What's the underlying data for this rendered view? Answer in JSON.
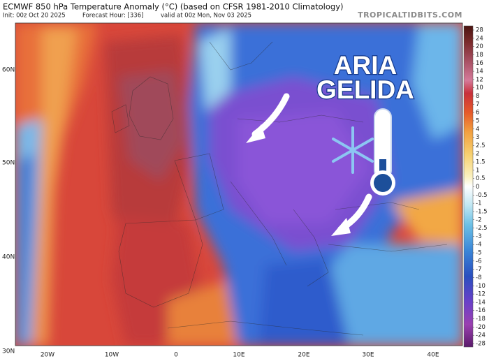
{
  "header": {
    "title": "ECMWF 850 hPa Temperature Anomaly (°C) (based on CFSR 1981-2010 Climatology)",
    "init": "Init: 00z Oct 20 2025",
    "forecast_hour": "Forecast Hour: [336]",
    "valid": "valid at 00z Mon, Nov 03 2025",
    "site": "TROPICALTIDBITS.COM"
  },
  "map": {
    "lat_labels": [
      "60N",
      "50N",
      "40N",
      "30N"
    ],
    "lon_labels": [
      "20W",
      "10W",
      "0",
      "10E",
      "20E",
      "30E",
      "40E"
    ],
    "annotation": [
      "ARIA",
      "GELIDA"
    ]
  },
  "colorbar": {
    "levels": [
      28,
      24,
      20,
      18,
      16,
      14,
      12,
      10,
      8,
      7,
      6,
      5,
      4,
      3,
      2.5,
      2,
      1.5,
      1,
      0.5,
      0,
      -0.5,
      -1,
      -1.5,
      -2,
      -2.5,
      -3,
      -4,
      -5,
      -6,
      -7,
      -8,
      -10,
      -12,
      -14,
      -16,
      -18,
      -20,
      -24,
      -28
    ]
  }
}
